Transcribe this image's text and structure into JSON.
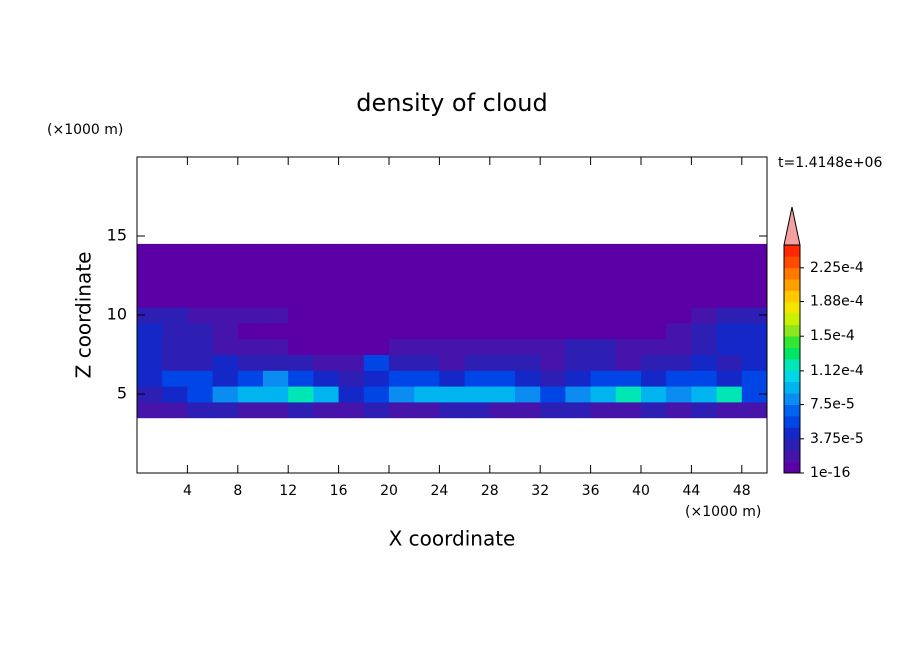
{
  "chart_data": {
    "type": "contour",
    "title": "density of cloud",
    "x_label": "X coordinate",
    "y_label": "Z coordinate",
    "x_unit": "(×1000 m)",
    "y_unit": "(×1000 m)",
    "annotation": "t=1.4148e+06",
    "xlim": [
      0,
      50
    ],
    "ylim": [
      0,
      20
    ],
    "xticks": [
      4,
      8,
      12,
      16,
      20,
      24,
      28,
      32,
      36,
      40,
      44,
      48
    ],
    "yticks": [
      5,
      10,
      15
    ],
    "xbins": [
      0,
      2,
      4,
      6,
      8,
      10,
      12,
      14,
      16,
      18,
      20,
      22,
      24,
      26,
      28,
      30,
      32,
      34,
      36,
      38,
      40,
      42,
      44,
      46,
      48,
      50
    ],
    "zbins": [
      3.5,
      4.5,
      5.5,
      6.5,
      7.5,
      8.5,
      9.5,
      10.5,
      11.5,
      12.5,
      13.5,
      14.5
    ],
    "z": [
      [
        1.5e-05,
        2e-05,
        3e-05,
        3e-05,
        2e-05,
        2e-05,
        3e-05,
        1.5e-05,
        2e-05,
        3e-05,
        2e-05,
        2e-05,
        3e-05,
        3e-05,
        2e-05,
        2e-05,
        3e-05,
        3e-05,
        2e-05,
        2e-05,
        3e-05,
        2e-05,
        3e-05,
        2e-05,
        2e-05
      ],
      [
        3e-05,
        4.5e-05,
        6e-05,
        8e-05,
        0.0001,
        0.0001,
        0.000115,
        9e-05,
        5e-05,
        6e-05,
        8e-05,
        0.0001,
        0.0001,
        9e-05,
        0.0001,
        8e-05,
        6e-05,
        8e-05,
        0.0001,
        0.000115,
        9e-05,
        8e-05,
        0.0001,
        0.000115,
        6e-05
      ],
      [
        4.5e-05,
        6e-05,
        6e-05,
        4.5e-05,
        6e-05,
        8e-05,
        6e-05,
        4.5e-05,
        3e-05,
        4.5e-05,
        6e-05,
        6e-05,
        4.5e-05,
        6e-05,
        6e-05,
        4.5e-05,
        3e-05,
        4.5e-05,
        6e-05,
        6e-05,
        4.5e-05,
        6e-05,
        6e-05,
        4.5e-05,
        6e-05
      ],
      [
        4.5e-05,
        3e-05,
        3e-05,
        4.5e-05,
        3e-05,
        3e-05,
        3e-05,
        1.5e-05,
        1.5e-05,
        6e-05,
        3e-05,
        3e-05,
        1.5e-05,
        3e-05,
        3e-05,
        3e-05,
        1.5e-05,
        3e-05,
        3e-05,
        1.5e-05,
        3e-05,
        3e-05,
        4.5e-05,
        3e-05,
        4.5e-05
      ],
      [
        4.5e-05,
        3e-05,
        3e-05,
        1.5e-05,
        1.5e-05,
        1.5e-05,
        5e-06,
        5e-06,
        5e-06,
        5e-06,
        1.5e-05,
        1.5e-05,
        1.5e-05,
        1.5e-05,
        1.5e-05,
        1.5e-05,
        1.5e-05,
        3e-05,
        3e-05,
        1.5e-05,
        1.5e-05,
        1.5e-05,
        3e-05,
        4.5e-05,
        4.5e-05
      ],
      [
        4.5e-05,
        3e-05,
        3e-05,
        1.5e-05,
        5e-06,
        5e-06,
        5e-06,
        5e-06,
        5e-06,
        5e-06,
        5e-06,
        5e-06,
        5e-06,
        5e-06,
        5e-06,
        5e-06,
        5e-06,
        5e-06,
        5e-06,
        5e-06,
        5e-06,
        1.5e-05,
        3e-05,
        4.5e-05,
        4.5e-05
      ],
      [
        3e-05,
        3e-05,
        1.5e-05,
        1.5e-05,
        1.5e-05,
        1.5e-05,
        5e-06,
        5e-06,
        5e-06,
        5e-06,
        5e-06,
        5e-06,
        5e-06,
        5e-06,
        5e-06,
        5e-06,
        5e-06,
        5e-06,
        5e-06,
        5e-06,
        5e-06,
        5e-06,
        1.5e-05,
        3e-05,
        3e-05
      ],
      [
        5e-06,
        5e-06,
        5e-06,
        5e-06,
        5e-06,
        5e-06,
        5e-06,
        5e-06,
        5e-06,
        5e-06,
        5e-06,
        5e-06,
        5e-06,
        5e-06,
        5e-06,
        5e-06,
        5e-06,
        5e-06,
        5e-06,
        5e-06,
        5e-06,
        5e-06,
        5e-06,
        5e-06,
        5e-06
      ],
      [
        5e-06,
        5e-06,
        5e-06,
        5e-06,
        5e-06,
        5e-06,
        5e-06,
        5e-06,
        5e-06,
        5e-06,
        5e-06,
        5e-06,
        5e-06,
        5e-06,
        5e-06,
        5e-06,
        5e-06,
        5e-06,
        5e-06,
        5e-06,
        5e-06,
        5e-06,
        5e-06,
        5e-06,
        5e-06
      ],
      [
        5e-06,
        5e-06,
        5e-06,
        5e-06,
        5e-06,
        5e-06,
        5e-06,
        5e-06,
        5e-06,
        5e-06,
        5e-06,
        5e-06,
        5e-06,
        5e-06,
        5e-06,
        5e-06,
        5e-06,
        5e-06,
        5e-06,
        5e-06,
        5e-06,
        5e-06,
        5e-06,
        5e-06,
        5e-06
      ],
      [
        5e-06,
        5e-06,
        5e-06,
        5e-06,
        5e-06,
        5e-06,
        5e-06,
        5e-06,
        5e-06,
        5e-06,
        5e-06,
        5e-06,
        5e-06,
        5e-06,
        5e-06,
        5e-06,
        5e-06,
        5e-06,
        5e-06,
        5e-06,
        5e-06,
        5e-06,
        5e-06,
        5e-06,
        5e-06
      ]
    ],
    "clim": [
      1e-16,
      0.00025
    ],
    "colors": [
      "#5a00a5",
      "#4614aa",
      "#2d1eb4",
      "#1428c8",
      "#0046e6",
      "#0064f0",
      "#0a8cf0",
      "#00b4f0",
      "#00d7e6",
      "#00e6b4",
      "#00e664",
      "#32e632",
      "#8ce61e",
      "#c8f000",
      "#f0e600",
      "#ffc800",
      "#ffa000",
      "#ff7800",
      "#ff4b00",
      "#ff2800"
    ],
    "extend_color": "#f4a0a0",
    "cticks": [
      1e-16,
      {
        "value": 3.75e-05,
        "label": "3.75e-5"
      },
      {
        "value": 7.5e-05,
        "label": "7.5e-5"
      },
      {
        "value": 0.000112,
        "label": "1.12e-4"
      },
      {
        "value": 0.00015,
        "label": "1.5e-4"
      },
      {
        "value": 0.000188,
        "label": "1.88e-4"
      },
      {
        "value": 0.000225,
        "label": "2.25e-4"
      }
    ]
  }
}
